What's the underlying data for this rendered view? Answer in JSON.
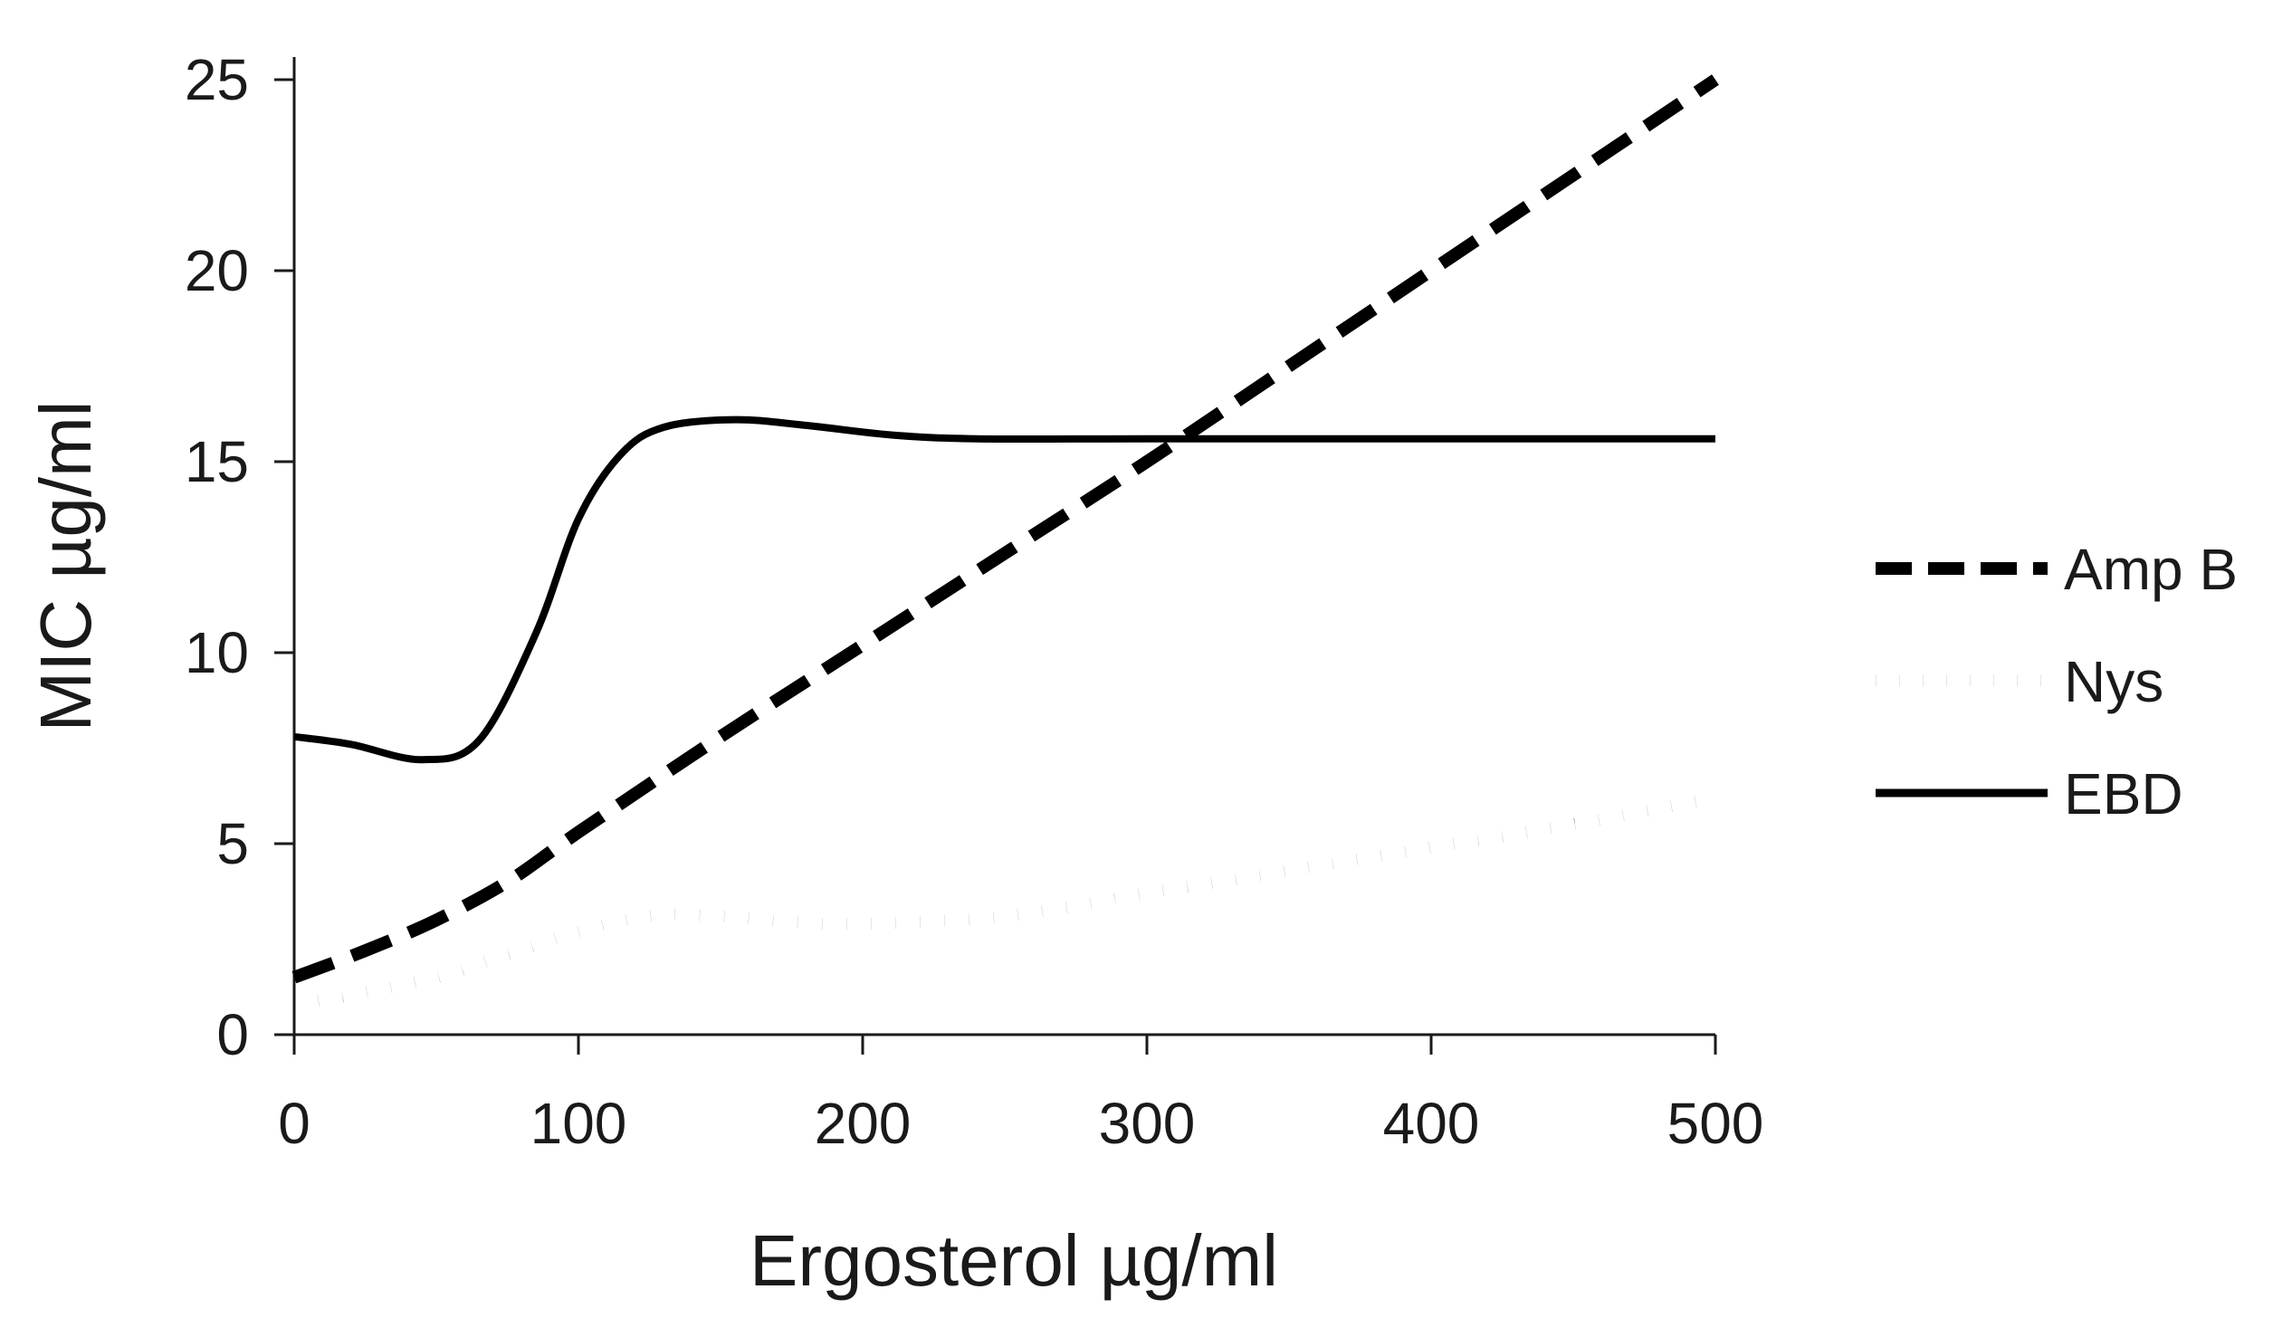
{
  "chart_data": {
    "type": "line",
    "title": "",
    "xlabel": "Ergosterol µg/ml",
    "ylabel": "MIC µg/ml",
    "xlim": [
      0,
      500
    ],
    "ylim": [
      0,
      25
    ],
    "xticks": [
      0,
      100,
      200,
      300,
      400,
      500
    ],
    "yticks": [
      0,
      5,
      10,
      15,
      20,
      25
    ],
    "grid": false,
    "legend_position": "right",
    "series": [
      {
        "name": "Amp B",
        "style": "dashed",
        "color": "#000000",
        "x": [
          0,
          25,
          50,
          75,
          100,
          150,
          200,
          250,
          300,
          350,
          400,
          450,
          500
        ],
        "y": [
          1.5,
          2.2,
          3.0,
          4.0,
          5.3,
          7.8,
          10.2,
          12.6,
          15.0,
          17.5,
          20.0,
          22.5,
          25.0
        ]
      },
      {
        "name": "Nys",
        "style": "dotted",
        "color": "#000000",
        "x": [
          0,
          25,
          50,
          75,
          100,
          125,
          150,
          175,
          200,
          250,
          300,
          350,
          400,
          450,
          500
        ],
        "y": [
          0.8,
          1.1,
          1.5,
          2.1,
          2.7,
          3.1,
          3.1,
          2.95,
          2.9,
          3.1,
          3.7,
          4.3,
          4.9,
          5.5,
          6.2
        ]
      },
      {
        "name": "EBD",
        "style": "solid",
        "color": "#000000",
        "x": [
          0,
          20,
          45,
          65,
          85,
          100,
          115,
          130,
          155,
          180,
          210,
          240,
          300,
          400,
          500
        ],
        "y": [
          7.8,
          7.6,
          7.2,
          7.7,
          10.5,
          13.5,
          15.2,
          15.9,
          16.1,
          15.95,
          15.7,
          15.6,
          15.6,
          15.6,
          15.6
        ]
      }
    ]
  }
}
